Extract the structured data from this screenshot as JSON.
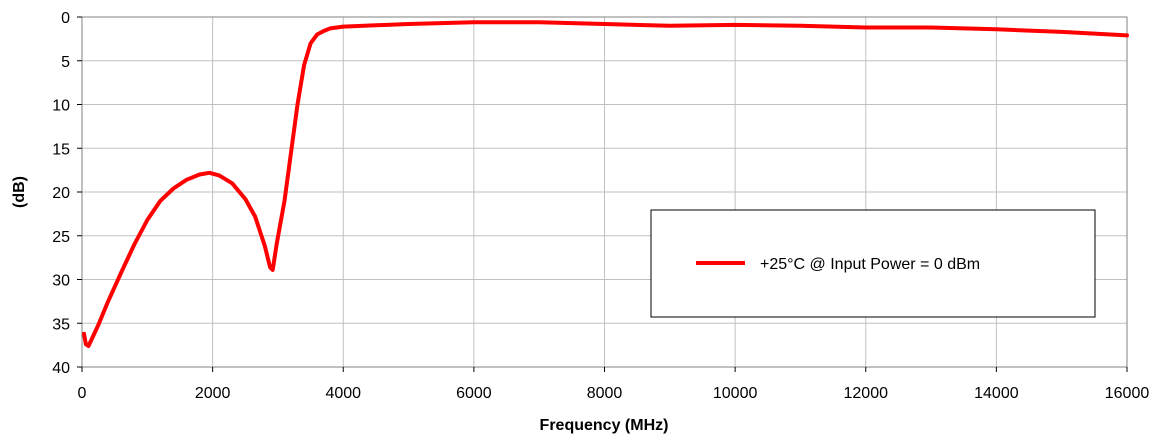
{
  "chart_data": {
    "type": "line",
    "title": "",
    "xlabel": "Frequency (MHz)",
    "ylabel": "(dB)",
    "xlim": [
      0,
      16000
    ],
    "ylim": [
      0,
      40
    ],
    "y_inverted": true,
    "x_ticks": [
      0,
      2000,
      4000,
      6000,
      8000,
      10000,
      12000,
      14000,
      16000
    ],
    "y_ticks": [
      0,
      5,
      10,
      15,
      20,
      25,
      30,
      35,
      40
    ],
    "x_tick_labels": [
      "0",
      "2000",
      "4000",
      "6000",
      "8000",
      "10000",
      "12000",
      "14000",
      "16000"
    ],
    "y_tick_labels": [
      "0",
      "5",
      "10",
      "15",
      "20",
      "25",
      "30",
      "35",
      "40"
    ],
    "grid": true,
    "legend_position": "right",
    "series": [
      {
        "name": "+25°C @  Input Power = 0 dBm",
        "color": "#ff0000",
        "x": [
          30,
          60,
          100,
          150,
          250,
          400,
          600,
          800,
          1000,
          1200,
          1400,
          1600,
          1800,
          1950,
          2100,
          2300,
          2500,
          2650,
          2800,
          2880,
          2920,
          2980,
          3100,
          3200,
          3300,
          3400,
          3500,
          3600,
          3700,
          3800,
          4000,
          5000,
          6000,
          7000,
          8000,
          9000,
          10000,
          11000,
          12000,
          13000,
          14000,
          15000,
          16000
        ],
        "y": [
          36.2,
          37.4,
          37.6,
          36.8,
          35.2,
          32.5,
          29.2,
          26.0,
          23.2,
          21.0,
          19.6,
          18.6,
          18.0,
          17.8,
          18.1,
          19.0,
          20.8,
          22.8,
          26.2,
          28.6,
          28.9,
          26.0,
          21.0,
          15.5,
          10.0,
          5.5,
          3.0,
          2.0,
          1.6,
          1.3,
          1.1,
          0.8,
          0.6,
          0.6,
          0.8,
          1.0,
          0.9,
          1.0,
          1.2,
          1.2,
          1.4,
          1.7,
          2.1
        ]
      }
    ]
  }
}
